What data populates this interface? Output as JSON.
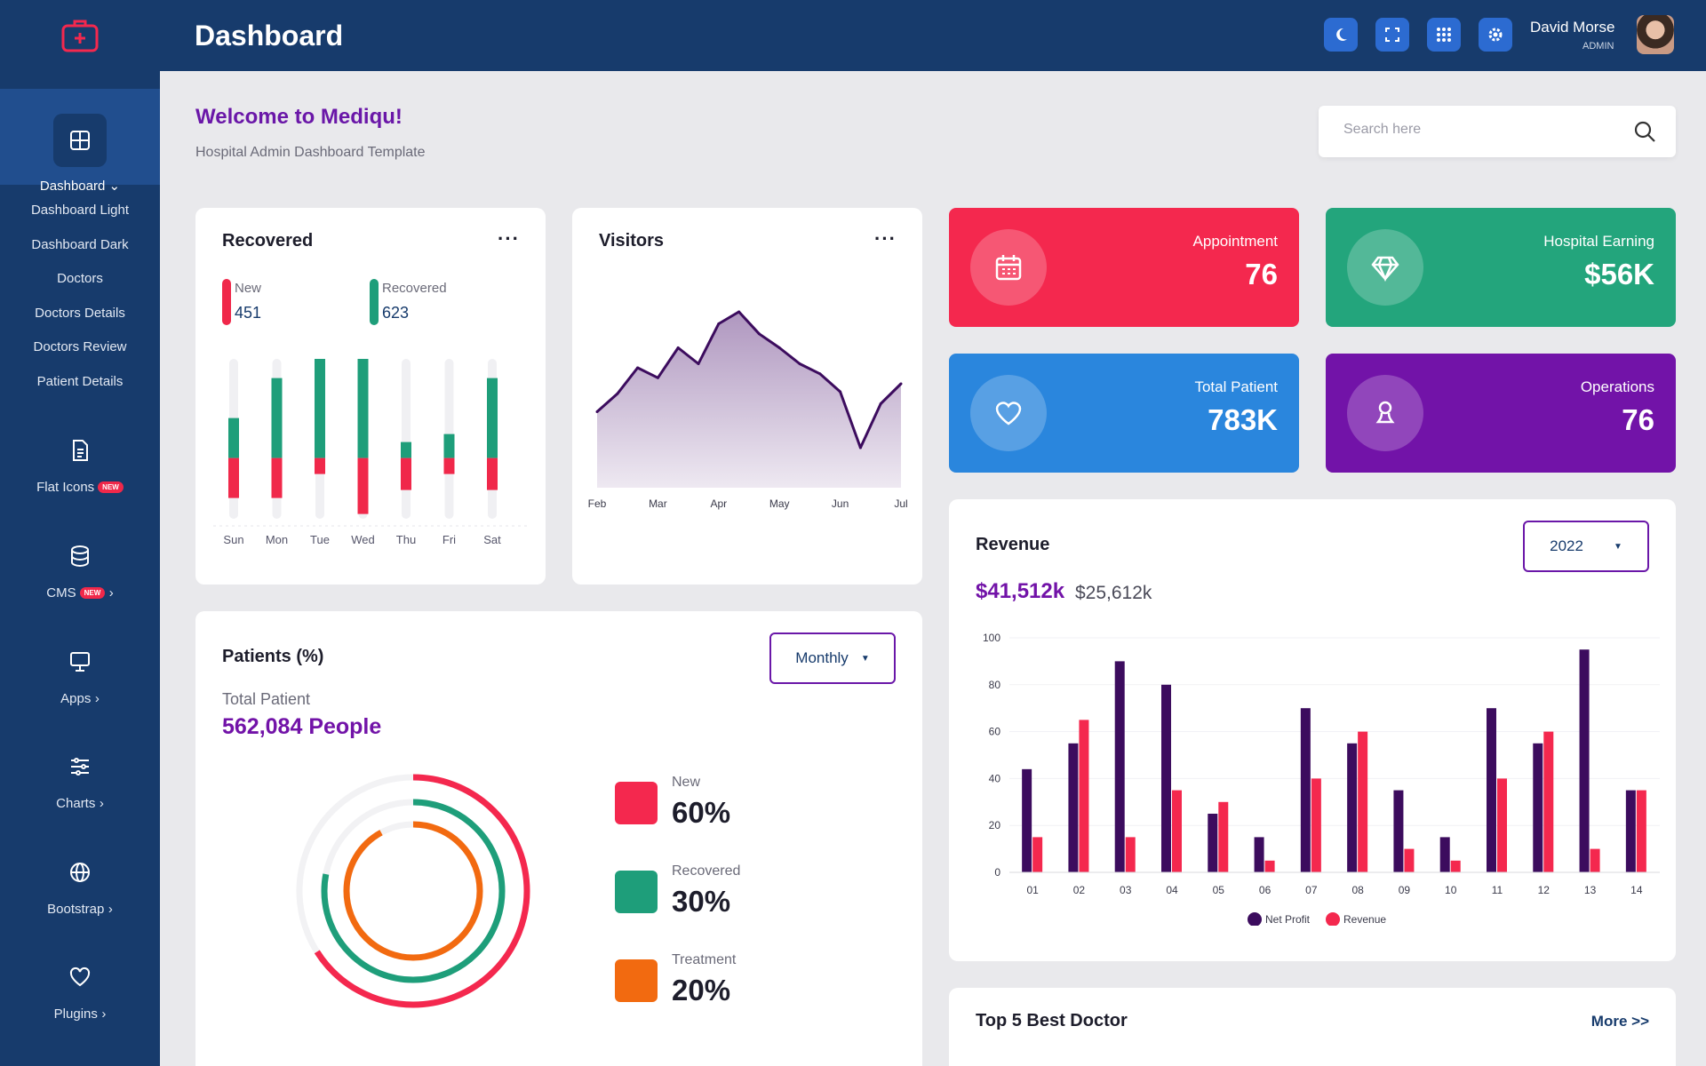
{
  "header": {
    "title": "Dashboard",
    "user_name": "David Morse",
    "user_role": "ADMIN"
  },
  "top_icons": [
    "moon-icon",
    "fullscreen-icon",
    "grid-icon",
    "settings-icon"
  ],
  "sidebar": {
    "active": {
      "label": "Dashboard",
      "icon": "dashboard-icon"
    },
    "sub_items": [
      "Dashboard Light",
      "Dashboard Dark",
      "Doctors",
      "Doctors Details",
      "Doctors Review",
      "Patient Details"
    ],
    "groups": [
      {
        "label": "Flat Icons",
        "badge": "NEW",
        "icon": "file-icon",
        "arrow": ""
      },
      {
        "label": "CMS",
        "badge": "NEW",
        "icon": "database-icon",
        "arrow": "›"
      },
      {
        "label": "Apps",
        "badge": "",
        "icon": "monitor-icon",
        "arrow": "›"
      },
      {
        "label": "Charts",
        "badge": "",
        "icon": "sliders-icon",
        "arrow": "›"
      },
      {
        "label": "Bootstrap",
        "badge": "",
        "icon": "globe-icon",
        "arrow": "›"
      },
      {
        "label": "Plugins",
        "badge": "",
        "icon": "heart-icon",
        "arrow": "›"
      }
    ]
  },
  "welcome": {
    "title": "Welcome to Mediqu!",
    "subtitle": "Hospital Admin Dashboard Template"
  },
  "search": {
    "placeholder": "Search here"
  },
  "recovered": {
    "title": "Recovered",
    "legend": [
      {
        "label": "New",
        "value": "451",
        "color": "#f0284a"
      },
      {
        "label": "Recovered",
        "value": "623",
        "color": "#1e9e7a"
      }
    ],
    "chart_data": {
      "type": "bar",
      "categories": [
        "Sun",
        "Mon",
        "Tue",
        "Wed",
        "Thu",
        "Fri",
        "Sat"
      ],
      "series": [
        {
          "name": "New",
          "values": [
            25,
            25,
            10,
            35,
            20,
            10,
            20
          ]
        },
        {
          "name": "Recovered",
          "values": [
            25,
            50,
            75,
            65,
            10,
            15,
            50
          ]
        }
      ],
      "ylim": [
        0,
        100
      ]
    }
  },
  "visitors": {
    "title": "Visitors",
    "chart_data": {
      "type": "area",
      "x": [
        "Feb",
        "",
        "",
        "Mar",
        "",
        "",
        "Apr",
        "",
        "",
        "May",
        "",
        "",
        "Jun",
        "",
        "",
        "Jul"
      ],
      "values": [
        38,
        47,
        60,
        55,
        70,
        62,
        82,
        88,
        77,
        70,
        62,
        57,
        48,
        20,
        42,
        52
      ],
      "ylim": [
        0,
        100
      ]
    }
  },
  "stats": [
    {
      "label": "Appointment",
      "value": "76",
      "color": "#f4284e",
      "icon": "calendar-icon"
    },
    {
      "label": "Hospital Earning",
      "value": "$56K",
      "color": "#23a57c",
      "icon": "diamond-icon"
    },
    {
      "label": "Total Patient",
      "value": "783K",
      "color": "#2a86dd",
      "icon": "heart-icon"
    },
    {
      "label": "Operations",
      "value": "76",
      "color": "#7213a8",
      "icon": "user-icon"
    }
  ],
  "patients": {
    "title": "Patients (%)",
    "dropdown": "Monthly",
    "total_label": "Total Patient",
    "total_value": "562,084 People",
    "chart_data": {
      "type": "pie",
      "labels": [
        "New",
        "Recovered",
        "Treatment"
      ],
      "values": [
        60,
        30,
        20
      ],
      "colors": [
        "#f4284e",
        "#1e9e7a",
        "#f26a10"
      ]
    }
  },
  "revenue": {
    "title": "Revenue",
    "year": "2022",
    "primary": "$41,512k",
    "secondary": "$25,612k",
    "chart_data": {
      "type": "bar",
      "categories": [
        "01",
        "02",
        "03",
        "04",
        "05",
        "06",
        "07",
        "08",
        "09",
        "10",
        "11",
        "12",
        "13",
        "14"
      ],
      "series": [
        {
          "name": "Net Profit",
          "color": "#3c0c5e",
          "values": [
            44,
            55,
            90,
            80,
            25,
            15,
            70,
            55,
            35,
            15,
            70,
            55,
            95,
            35
          ]
        },
        {
          "name": "Revenue",
          "color": "#f4284e",
          "values": [
            15,
            65,
            15,
            35,
            30,
            5,
            40,
            60,
            10,
            5,
            40,
            60,
            10,
            35
          ]
        }
      ],
      "ylim": [
        0,
        100
      ],
      "yticks": [
        0,
        20,
        40,
        60,
        80,
        100
      ]
    }
  },
  "doctors": {
    "title": "Top 5 Best Doctor",
    "more": "More >>"
  }
}
